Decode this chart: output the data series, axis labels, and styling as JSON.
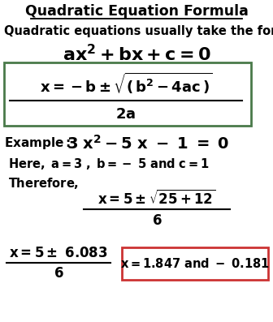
{
  "bg_color": "#ffffff",
  "box1_edgecolor": "#4a7a4a",
  "box2_edgecolor": "#cc3333",
  "text_color": "#000000",
  "title": "Quadratic Equation Formula",
  "subtitle": "Quadratic equations usually take the form",
  "figsize": [
    3.36,
    3.97
  ],
  "dpi": 100
}
